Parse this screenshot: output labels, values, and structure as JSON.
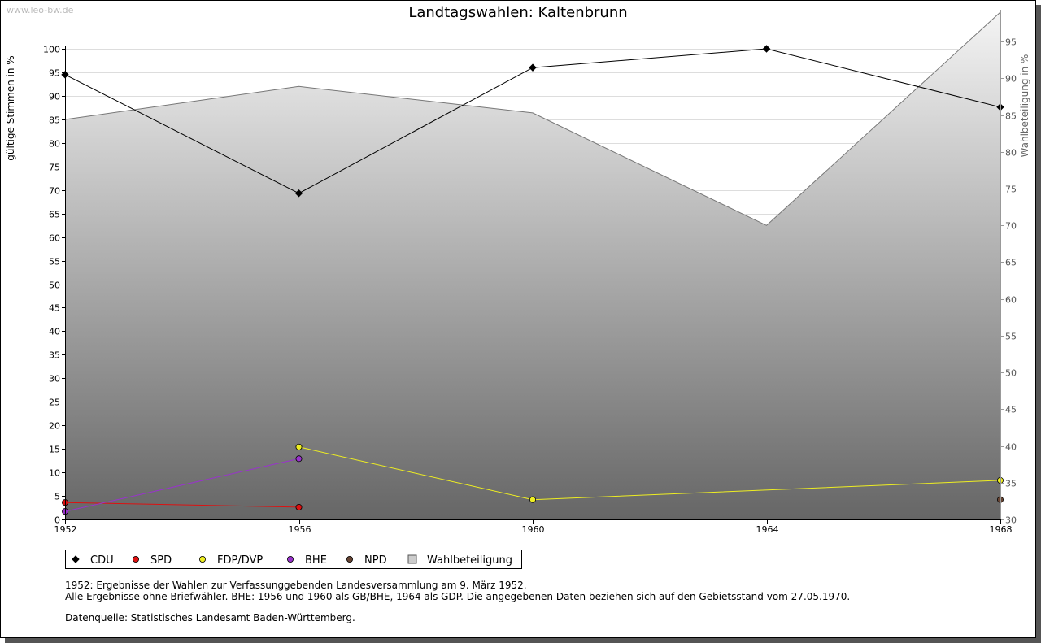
{
  "watermark": "www.leo-bw.de",
  "chart_data": {
    "type": "line",
    "title": "Landtagswahlen: Kaltenbrunn",
    "ylabel": "gültige Stimmen in %",
    "y2label": "Wahlbeteiligung in %",
    "x": [
      1952,
      1956,
      1960,
      1964,
      1968
    ],
    "x_ticks": [
      "1952",
      "1956",
      "1960",
      "1964",
      "1968"
    ],
    "ylim": [
      0,
      100
    ],
    "y_ticks": [
      "0",
      "5",
      "10",
      "15",
      "20",
      "25",
      "30",
      "35",
      "40",
      "45",
      "50",
      "55",
      "60",
      "65",
      "70",
      "75",
      "80",
      "85",
      "90",
      "95",
      "100"
    ],
    "y2lim": [
      30,
      99
    ],
    "y2_ticks": [
      "30",
      "35",
      "40",
      "45",
      "50",
      "55",
      "60",
      "65",
      "70",
      "75",
      "80",
      "85",
      "90",
      "95"
    ],
    "grid": true,
    "area": {
      "name": "Wahlbeteiligung",
      "axis": "right",
      "values": [
        84.4,
        88.9,
        85.3,
        70.0,
        99.0
      ]
    },
    "series": [
      {
        "name": "CDU",
        "color": "#000000",
        "values": [
          94.5,
          69.3,
          96.0,
          100.0,
          87.6
        ]
      },
      {
        "name": "SPD",
        "color": "#dd1111",
        "values": [
          3.6,
          2.6,
          null,
          null,
          null
        ]
      },
      {
        "name": "FDP/DVP",
        "color": "#eeee22",
        "values": [
          null,
          15.4,
          4.2,
          null,
          8.3
        ]
      },
      {
        "name": "BHE",
        "color": "#9933cc",
        "values": [
          1.7,
          12.9,
          null,
          null,
          null
        ]
      },
      {
        "name": "NPD",
        "color": "#664433",
        "values": [
          null,
          null,
          null,
          null,
          4.2
        ]
      }
    ],
    "legend": [
      "CDU",
      "SPD",
      "FDP/DVP",
      "BHE",
      "NPD",
      "Wahlbeteiligung"
    ],
    "legend_colors": [
      "#000000",
      "#dd1111",
      "#eeee22",
      "#9933cc",
      "#664433",
      "#cccccc"
    ]
  },
  "notes": {
    "line1": "1952: Ergebnisse der Wahlen zur Verfassunggebenden Landesversammlung am 9. März 1952.",
    "line2": "Alle Ergebnisse ohne Briefwähler. BHE: 1956 und 1960 als GB/BHE, 1964 als GDP. Die angegebenen Daten beziehen sich auf den Gebietsstand vom 27.05.1970.",
    "line3": "Datenquelle: Statistisches Landesamt Baden-Württemberg."
  }
}
